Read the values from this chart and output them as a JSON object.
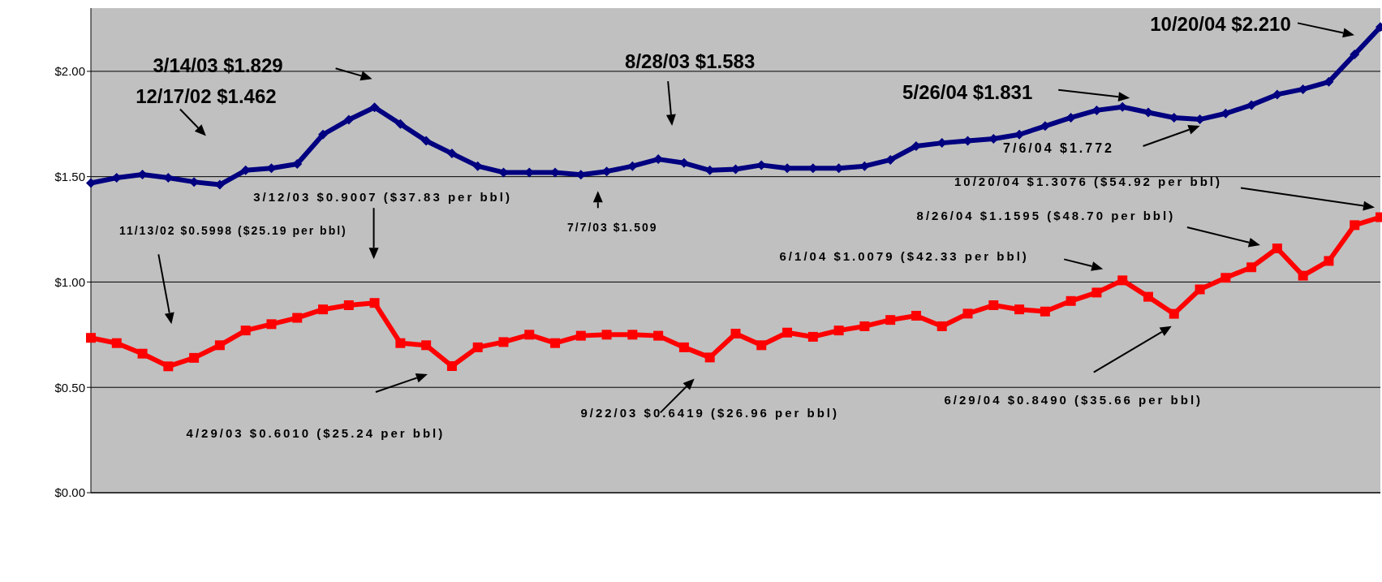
{
  "chart_data": {
    "type": "line",
    "categories": [
      null,
      null,
      null,
      null,
      null,
      null,
      null,
      null,
      null,
      null,
      null,
      null,
      null,
      null,
      null,
      null,
      null,
      null,
      null,
      null,
      null,
      null,
      null,
      null,
      null,
      null,
      null,
      null,
      null,
      null,
      null,
      null,
      null,
      null,
      null,
      null,
      null,
      null,
      null,
      null,
      null,
      null,
      null,
      null,
      null,
      null,
      null,
      null,
      null,
      null,
      null
    ],
    "ylim": [
      0,
      2.3
    ],
    "yticks": [
      {
        "value": 0,
        "label": "$0.00"
      },
      {
        "value": 0.5,
        "label": "$0.50"
      },
      {
        "value": 1,
        "label": "$1.00"
      },
      {
        "value": 1.5,
        "label": "$1.50"
      },
      {
        "value": 2,
        "label": "$2.00"
      }
    ],
    "grid": "y",
    "tick_labels": "y",
    "legend": false,
    "series": [
      {
        "color": "#000080",
        "marker": "diamond",
        "values": [
          1.47,
          1.495,
          1.51,
          1.495,
          1.475,
          1.462,
          1.53,
          1.54,
          1.56,
          1.7,
          1.77,
          1.829,
          1.75,
          1.67,
          1.61,
          1.55,
          1.52,
          1.52,
          1.52,
          1.509,
          1.525,
          1.55,
          1.583,
          1.565,
          1.53,
          1.535,
          1.555,
          1.54,
          1.54,
          1.54,
          1.55,
          1.58,
          1.645,
          1.66,
          1.67,
          1.68,
          1.7,
          1.74,
          1.78,
          1.815,
          1.831,
          1.805,
          1.78,
          1.772,
          1.8,
          1.84,
          1.89,
          1.915,
          1.95,
          2.08,
          2.21
        ]
      },
      {
        "color": "#ff0000",
        "marker": "square",
        "values": [
          0.735,
          0.71,
          0.66,
          0.5998,
          0.64,
          0.7,
          0.77,
          0.8,
          0.83,
          0.87,
          0.89,
          0.9007,
          0.71,
          0.7,
          0.601,
          0.69,
          0.715,
          0.75,
          0.71,
          0.745,
          0.75,
          0.75,
          0.745,
          0.69,
          0.6419,
          0.755,
          0.7,
          0.76,
          0.74,
          0.77,
          0.79,
          0.82,
          0.84,
          0.79,
          0.85,
          0.89,
          0.87,
          0.86,
          0.91,
          0.95,
          1.0079,
          0.93,
          0.849,
          0.965,
          1.02,
          1.07,
          1.1595,
          1.03,
          1.1,
          1.27,
          1.3076
        ]
      }
    ],
    "annotations": [
      "12/17/02 $1.462",
      "3/14/03 $1.829",
      "8/28/03 $1.583",
      "5/26/04 $1.831",
      "7/6/04 $1.772",
      "10/20/04 $2.210",
      "7/7/03 $1.509",
      "11/13/02 $0.5998 ($25.19 per bbl)",
      "3/12/03 $0.9007  ($37.83 per bbl)",
      "4/29/03 $0.6010 ($25.24 per bbl)",
      "9/22/03 $0.6419 ($26.96 per bbl)",
      "6/1/04 $1.0079 ($42.33 per bbl)",
      "6/29/04 $0.8490 ($35.66 per bbl)",
      "8/26/04 $1.1595 ($48.70 per bbl)",
      "10/20/04 $1.3076 ($54.92 per bbl)"
    ]
  }
}
